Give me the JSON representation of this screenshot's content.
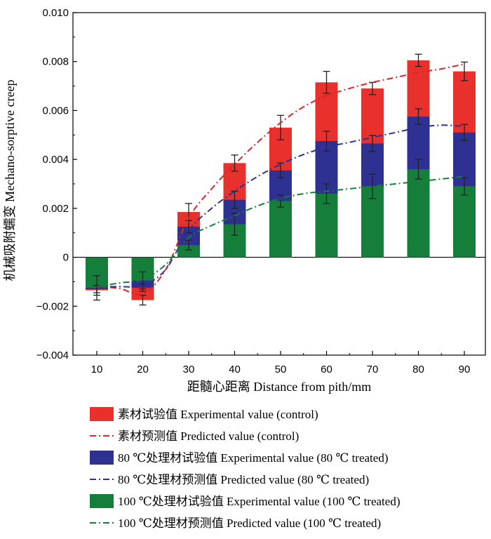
{
  "chart_data": {
    "type": "bar",
    "xlabel": "距髓心距离  Distance from pith/mm",
    "ylabel": "机械吸附蠕变  Mechano-sorptive creep",
    "categories": [
      "10",
      "20",
      "30",
      "40",
      "50",
      "60",
      "70",
      "80",
      "90"
    ],
    "ylim": [
      -0.004,
      0.01
    ],
    "yticks": [
      -0.004,
      -0.002,
      0,
      0.002,
      0.004,
      0.006,
      0.008,
      0.01
    ],
    "ytick_labels": [
      "−0.004",
      "−0.002",
      "0",
      "0.002",
      "0.004",
      "0.006",
      "0.008",
      "0.010"
    ],
    "grid": false,
    "legend_position": "bottom",
    "series": [
      {
        "name": "素材试验值  Experimental value (control)",
        "kind": "bar",
        "color": "#e8302d",
        "values": [
          -0.00135,
          -0.00175,
          0.00185,
          0.00385,
          0.0053,
          0.00715,
          0.0069,
          0.00805,
          0.0076
        ],
        "errors": [
          0.0002,
          0.0002,
          0.00035,
          0.00033,
          0.0005,
          0.00045,
          0.00025,
          0.00025,
          0.00038
        ]
      },
      {
        "name": "素材预测值  Predicted value (control)",
        "kind": "line",
        "style": "dash-dot",
        "color": "#d8262a",
        "x": [
          10,
          15,
          20,
          25,
          30,
          35,
          40,
          45,
          50,
          55,
          60,
          65,
          70,
          75,
          80,
          85,
          90
        ],
        "values": [
          -0.0012,
          -0.00128,
          -0.0015,
          -0.0005,
          0.0016,
          0.0028,
          0.0038,
          0.0047,
          0.0055,
          0.00615,
          0.0066,
          0.0069,
          0.00715,
          0.00735,
          0.00755,
          0.0077,
          0.0079
        ]
      },
      {
        "name": "80 ℃处理材试验值  Experimental value (80 ℃ treated)",
        "kind": "bar",
        "color": "#2e3192",
        "values": [
          -0.0013,
          -0.00125,
          0.00125,
          0.00235,
          0.00355,
          0.00475,
          0.00465,
          0.00575,
          0.0051
        ],
        "errors": [
          0.00015,
          0.00015,
          0.00025,
          0.00035,
          0.0003,
          0.0004,
          0.00033,
          0.00032,
          0.00033
        ]
      },
      {
        "name": "80 ℃处理材预测值  Predicted value (80 ℃ treated)",
        "kind": "line",
        "style": "dash-dot",
        "color": "#2e3192",
        "x": [
          10,
          15,
          20,
          25,
          30,
          35,
          40,
          45,
          50,
          55,
          60,
          65,
          70,
          75,
          80,
          85,
          90
        ],
        "values": [
          -0.0012,
          -0.0012,
          -0.00115,
          -0.0005,
          0.0011,
          0.002,
          0.0027,
          0.0033,
          0.0038,
          0.0042,
          0.0045,
          0.0047,
          0.0049,
          0.0051,
          0.0053,
          0.0054,
          0.00535
        ]
      },
      {
        "name": "100 ℃处理材试验值  Experimental value (100 ℃ treated)",
        "kind": "bar",
        "color": "#157e3a",
        "values": [
          -0.00125,
          -0.00095,
          0.0005,
          0.00135,
          0.0023,
          0.0026,
          0.0029,
          0.0036,
          0.0029
        ],
        "errors": [
          0.0005,
          0.00035,
          0.0002,
          0.00045,
          0.00025,
          0.0004,
          0.0005,
          0.0004,
          0.00035
        ]
      },
      {
        "name": "100 ℃处理材预测值  Predicted value (100 ℃ treated)",
        "kind": "line",
        "style": "dash-dot",
        "color": "#157e3a",
        "x": [
          10,
          15,
          20,
          25,
          30,
          35,
          40,
          45,
          50,
          55,
          60,
          65,
          70,
          75,
          80,
          85,
          90
        ],
        "values": [
          -0.0012,
          -0.00105,
          -0.0009,
          -0.0003,
          0.0008,
          0.0013,
          0.0017,
          0.0021,
          0.0024,
          0.0026,
          0.0027,
          0.0028,
          0.0029,
          0.003,
          0.0031,
          0.0032,
          0.0033
        ]
      }
    ]
  }
}
